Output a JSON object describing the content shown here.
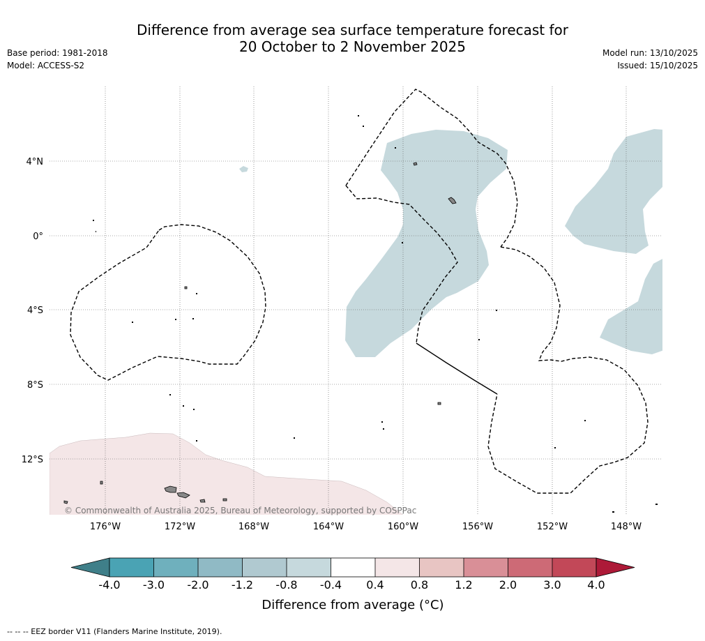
{
  "title": {
    "line1": "Difference from average sea surface temperature forecast for",
    "line2": "20 October to 2 November 2025"
  },
  "meta_left": {
    "base_period": "Base period: 1981-2018",
    "model": "Model: ACCESS-S2"
  },
  "meta_right": {
    "model_run": "Model run: 13/10/2025",
    "issued": "Issued: 15/10/2025"
  },
  "map": {
    "lat_labels": [
      "4°N",
      "0°",
      "4°S",
      "8°S",
      "12°S"
    ],
    "lon_labels": [
      "176°W",
      "172°W",
      "168°W",
      "164°W",
      "160°W",
      "156°W",
      "152°W",
      "148°W"
    ],
    "copyright": "© Commonwealth of Australia 2025, Bureau of Meteorology, supported by COSPPac",
    "colors": {
      "cool_anomaly": "#c6d9dd",
      "warm_anomaly": "#f4e6e7",
      "land": "#888888",
      "grid": "#555555"
    }
  },
  "colorbar": {
    "ticks": [
      "-4.0",
      "-3.0",
      "-2.0",
      "-1.2",
      "-0.8",
      "-0.4",
      "0.4",
      "0.8",
      "1.2",
      "2.0",
      "3.0",
      "4.0"
    ],
    "colors": [
      "#3f7f89",
      "#4aa3b4",
      "#6fb0bd",
      "#90bac5",
      "#b0c9d0",
      "#c6d9dd",
      "#ffffff",
      "#f4e6e7",
      "#e8c5c3",
      "#d98f97",
      "#cd6a76",
      "#c24858",
      "#ad1a38"
    ],
    "label": "Difference from average (°C)"
  },
  "footer": "--  --  -- EEZ border V11 (Flanders Marine Institute, 2019)."
}
